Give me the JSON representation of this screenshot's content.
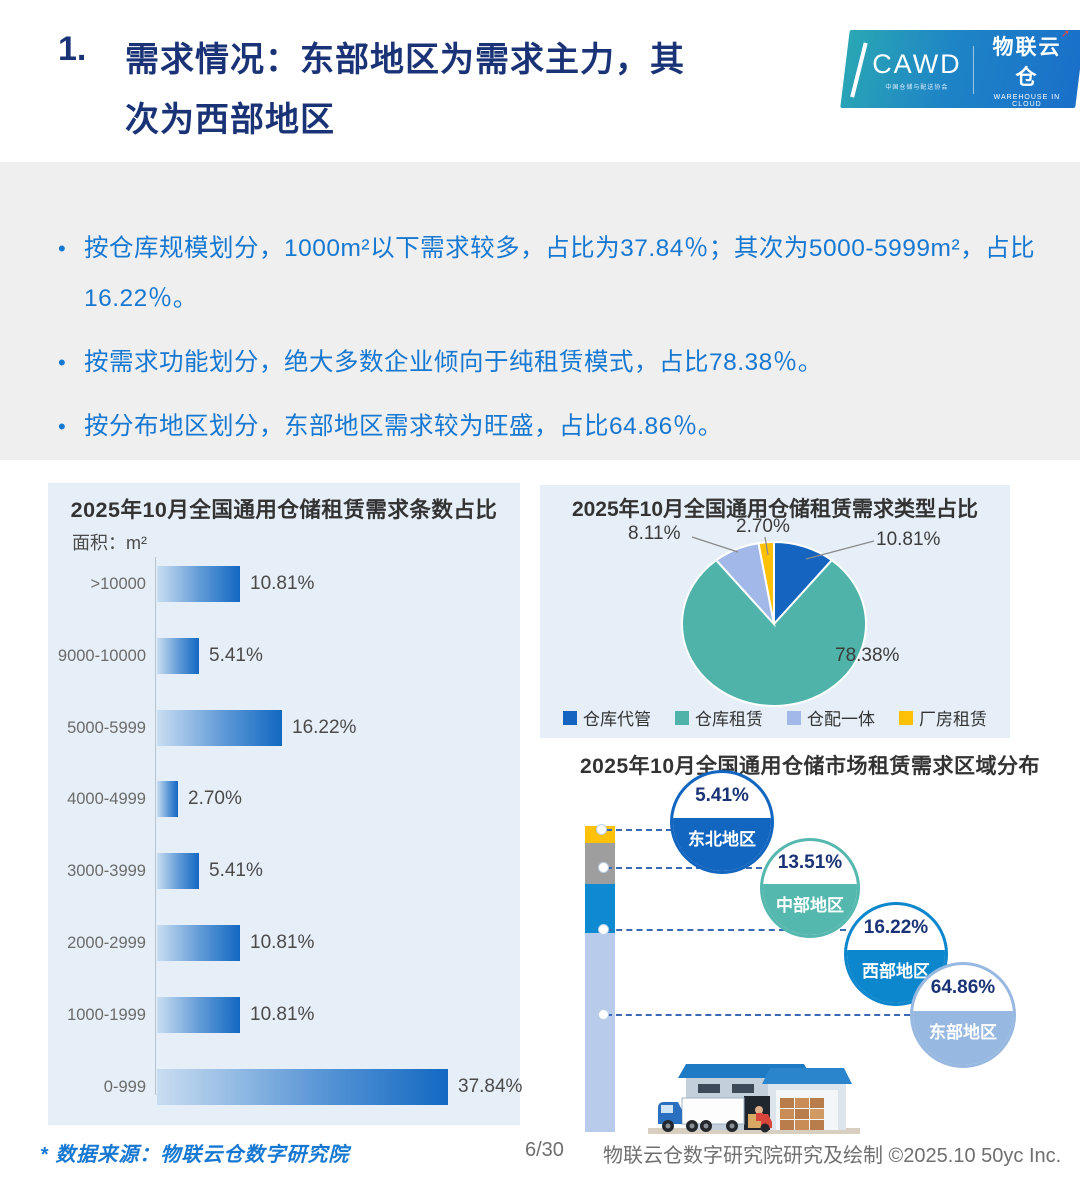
{
  "header": {
    "title_number": "1.",
    "title_line1": "需求情况：东部地区为需求主力，其",
    "title_line2": "次为西部地区",
    "logo": {
      "cawd_text": "CAWD",
      "cawd_subtext": "中国仓储与配送协会",
      "brand_cn": "物联云仓",
      "brand_en": "WAREHOUSE IN CLOUD",
      "brand_arrow": "➚"
    }
  },
  "summary": {
    "bullets": [
      "按仓库规模划分，1000m²以下需求较多，占比为37.84％；其次为5000-5999m²，占比16.22％。",
      "按需求功能划分，绝大多数企业倾向于纯租赁模式，占比78.38％。",
      "按分布地区划分，东部地区需求较为旺盛，占比64.86％。"
    ]
  },
  "chart_data": [
    {
      "type": "bar",
      "orientation": "horizontal",
      "title": "2025年10月全国通用仓储租赁需求条数占比",
      "unit_label": "面积：m²",
      "categories": [
        ">10000",
        "9000-10000",
        "5000-5999",
        "4000-4999",
        "3000-3999",
        "2000-2999",
        "1000-1999",
        "0-999"
      ],
      "values": [
        10.81,
        5.41,
        16.22,
        2.7,
        5.41,
        10.81,
        10.81,
        37.84
      ],
      "value_labels": [
        "10.81%",
        "5.41%",
        "16.22%",
        "2.70%",
        "5.41%",
        "10.81%",
        "10.81%",
        "37.84%"
      ],
      "xlim": [
        0,
        40
      ],
      "grid": false,
      "bar_gradient": [
        "#c9ddf1",
        "#1268c2"
      ]
    },
    {
      "type": "pie",
      "title": "2025年10月全国通用仓储租赁需求类型占比",
      "labels": [
        "仓库代管",
        "仓库租赁",
        "仓配一体",
        "厂房租赁"
      ],
      "values": [
        10.81,
        78.38,
        8.11,
        2.7
      ],
      "value_labels": [
        "10.81%",
        "78.38%",
        "8.11%",
        "2.70%"
      ],
      "colors": [
        "#1565c0",
        "#4fb3aa",
        "#a2b8e8",
        "#ffc107"
      ],
      "legend_position": "bottom",
      "start_angle_deg": 0,
      "direction": "clockwise"
    },
    {
      "type": "bar",
      "subtype": "stacked-column-with-callouts",
      "title": "2025年10月全国通用仓储市场租赁需求区域分布",
      "categories": [
        "东北地区",
        "中部地区",
        "西部地区",
        "东部地区"
      ],
      "values": [
        5.41,
        13.51,
        16.22,
        64.86
      ],
      "value_labels": [
        "5.41%",
        "13.51%",
        "16.22%",
        "64.86%"
      ],
      "colors": [
        "#1266c0",
        "#55b8af",
        "#0c86cc",
        "#97b8e0"
      ],
      "bar_colors": [
        "#ffc107",
        "#9e9e9e",
        "#0d8ad2",
        "#b9cbea"
      ]
    }
  ],
  "footer": {
    "source_note": "* 数据来源：物联云仓数字研究院",
    "page_number": "6/30",
    "credit": "物联云仓数字研究院研究及绘制  ©2025.10 50yc Inc."
  }
}
